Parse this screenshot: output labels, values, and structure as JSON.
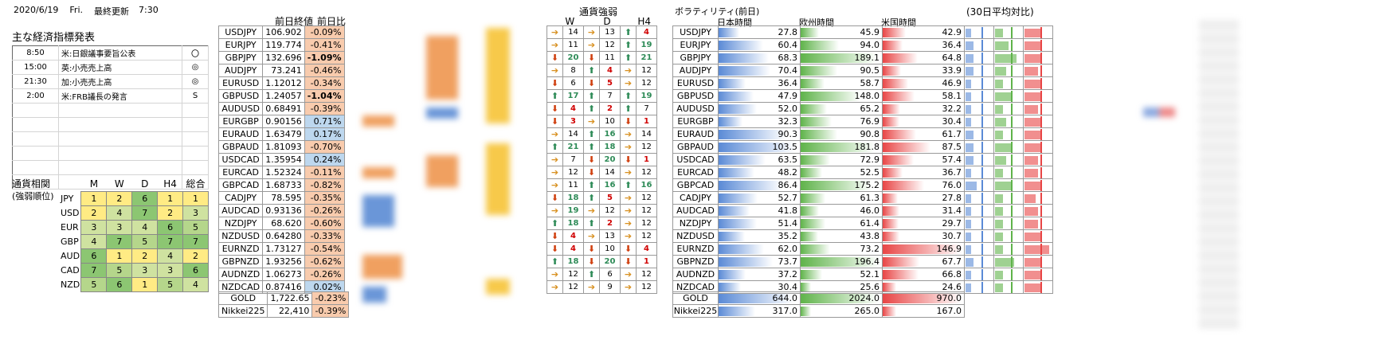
{
  "header": {
    "date": "2020/6/19",
    "day": "Fri.",
    "updated_label": "最終更新",
    "updated_time": "7:30"
  },
  "econ": {
    "title": "主な経済指標発表",
    "rows": [
      {
        "time": "8:50",
        "event": "米:日銀議事要旨公表",
        "mark": "〇"
      },
      {
        "time": "15:00",
        "event": "英:小売売上高",
        "mark": "◎"
      },
      {
        "time": "21:30",
        "event": "加:小売売上高",
        "mark": "◎"
      },
      {
        "time": "2:00",
        "event": "米:FRB議長の発言",
        "mark": "S"
      },
      {
        "time": "",
        "event": "",
        "mark": ""
      },
      {
        "time": "",
        "event": "",
        "mark": ""
      },
      {
        "time": "",
        "event": "",
        "mark": ""
      },
      {
        "time": "",
        "event": "",
        "mark": ""
      },
      {
        "time": "",
        "event": "",
        "mark": ""
      },
      {
        "time": "",
        "event": "",
        "mark": ""
      }
    ]
  },
  "corr": {
    "title": "通貨相関",
    "subtitle": "(強弱順位)",
    "headers": [
      "M",
      "W",
      "D",
      "H4",
      "総合"
    ],
    "rows": [
      {
        "cur": "JPY",
        "vals": [
          "1",
          "2",
          "6",
          "1",
          "1"
        ]
      },
      {
        "cur": "USD",
        "vals": [
          "2",
          "4",
          "7",
          "2",
          "3"
        ]
      },
      {
        "cur": "EUR",
        "vals": [
          "3",
          "3",
          "4",
          "6",
          "5"
        ]
      },
      {
        "cur": "GBP",
        "vals": [
          "4",
          "7",
          "5",
          "7",
          "7"
        ]
      },
      {
        "cur": "AUD",
        "vals": [
          "6",
          "1",
          "2",
          "4",
          "2"
        ]
      },
      {
        "cur": "CAD",
        "vals": [
          "7",
          "5",
          "3",
          "3",
          "6"
        ]
      },
      {
        "cur": "NZD",
        "vals": [
          "5",
          "6",
          "1",
          "5",
          "4"
        ]
      }
    ]
  },
  "prices": {
    "h_close": "前日終値",
    "h_chg": "前日比",
    "rows": [
      {
        "pair": "USDJPY",
        "close": "106.902",
        "chg": "-0.09%",
        "bold": false
      },
      {
        "pair": "EURJPY",
        "close": "119.774",
        "chg": "-0.41%",
        "bold": false
      },
      {
        "pair": "GBPJPY",
        "close": "132.696",
        "chg": "-1.09%",
        "bold": true
      },
      {
        "pair": "AUDJPY",
        "close": "73.241",
        "chg": "-0.46%",
        "bold": false
      },
      {
        "pair": "EURUSD",
        "close": "1.12012",
        "chg": "-0.34%",
        "bold": false
      },
      {
        "pair": "GBPUSD",
        "close": "1.24057",
        "chg": "-1.04%",
        "bold": true
      },
      {
        "pair": "AUDUSD",
        "close": "0.68491",
        "chg": "-0.39%",
        "bold": false
      },
      {
        "pair": "EURGBP",
        "close": "0.90156",
        "chg": "0.71%",
        "bold": false
      },
      {
        "pair": "EURAUD",
        "close": "1.63479",
        "chg": "0.17%",
        "bold": false
      },
      {
        "pair": "GBPAUD",
        "close": "1.81093",
        "chg": "-0.70%",
        "bold": false
      },
      {
        "pair": "USDCAD",
        "close": "1.35954",
        "chg": "0.24%",
        "bold": false
      },
      {
        "pair": "EURCAD",
        "close": "1.52324",
        "chg": "-0.11%",
        "bold": false
      },
      {
        "pair": "GBPCAD",
        "close": "1.68733",
        "chg": "-0.82%",
        "bold": false
      },
      {
        "pair": "CADJPY",
        "close": "78.595",
        "chg": "-0.35%",
        "bold": false
      },
      {
        "pair": "AUDCAD",
        "close": "0.93136",
        "chg": "-0.26%",
        "bold": false
      },
      {
        "pair": "NZDJPY",
        "close": "68.620",
        "chg": "-0.60%",
        "bold": false
      },
      {
        "pair": "NZDUSD",
        "close": "0.64280",
        "chg": "-0.33%",
        "bold": false
      },
      {
        "pair": "EURNZD",
        "close": "1.73127",
        "chg": "-0.54%",
        "bold": false
      },
      {
        "pair": "GBPNZD",
        "close": "1.93256",
        "chg": "-0.62%",
        "bold": false
      },
      {
        "pair": "AUDNZD",
        "close": "1.06273",
        "chg": "-0.26%",
        "bold": false
      },
      {
        "pair": "NZDCAD",
        "close": "0.87416",
        "chg": "0.02%",
        "bold": false
      }
    ],
    "extra": [
      {
        "pair": "GOLD",
        "close": "1,722.65",
        "chg": "-0.23%"
      },
      {
        "pair": "Nikkei225",
        "close": "22,410",
        "chg": "-0.39%"
      }
    ]
  },
  "strength": {
    "title": "通貨強弱",
    "headers": [
      "W",
      "D",
      "H4"
    ],
    "rows": [
      [
        "R",
        "14",
        "R",
        "13",
        "U",
        "4"
      ],
      [
        "R",
        "11",
        "R",
        "12",
        "U",
        "19"
      ],
      [
        "D",
        "20",
        "D",
        "11",
        "U",
        "21"
      ],
      [
        "R",
        "8",
        "U",
        "4",
        "R",
        "12"
      ],
      [
        "D",
        "6",
        "D",
        "5",
        "R",
        "12"
      ],
      [
        "U",
        "17",
        "U",
        "7",
        "U",
        "19"
      ],
      [
        "D",
        "4",
        "U",
        "2",
        "U",
        "7"
      ],
      [
        "D",
        "3",
        "R",
        "10",
        "D",
        "1"
      ],
      [
        "R",
        "14",
        "U",
        "16",
        "R",
        "14"
      ],
      [
        "U",
        "21",
        "U",
        "18",
        "R",
        "12"
      ],
      [
        "R",
        "7",
        "D",
        "20",
        "D",
        "1"
      ],
      [
        "R",
        "12",
        "D",
        "14",
        "R",
        "12"
      ],
      [
        "R",
        "11",
        "U",
        "16",
        "U",
        "16"
      ],
      [
        "D",
        "18",
        "U",
        "5",
        "R",
        "12"
      ],
      [
        "R",
        "19",
        "R",
        "12",
        "R",
        "12"
      ],
      [
        "U",
        "18",
        "U",
        "2",
        "R",
        "12"
      ],
      [
        "D",
        "4",
        "R",
        "13",
        "R",
        "12"
      ],
      [
        "D",
        "4",
        "D",
        "10",
        "D",
        "4"
      ],
      [
        "U",
        "18",
        "D",
        "20",
        "D",
        "1"
      ],
      [
        "R",
        "12",
        "U",
        "6",
        "R",
        "12"
      ],
      [
        "R",
        "12",
        "R",
        "9",
        "R",
        "12"
      ]
    ]
  },
  "vol": {
    "title": "ボラティリティ(前日)",
    "title2": "(30日平均対比)",
    "h_jp": "日本時間",
    "h_eu": "欧州時間",
    "h_us": "米国時間",
    "colors": {
      "jp": "#5a8ad6",
      "eu": "#5fb34a",
      "us": "#e84545"
    },
    "rows": [
      {
        "pair": "USDJPY",
        "jp": "27.8",
        "eu": "45.9",
        "us": "42.9",
        "mini": [
          0.2,
          0.3,
          0.6
        ]
      },
      {
        "pair": "EURJPY",
        "jp": "60.4",
        "eu": "94.0",
        "us": "36.4",
        "mini": [
          0.3,
          0.5,
          0.6
        ]
      },
      {
        "pair": "GBPJPY",
        "jp": "68.3",
        "eu": "189.1",
        "us": "64.8",
        "mini": [
          0.3,
          0.8,
          0.6
        ]
      },
      {
        "pair": "AUDJPY",
        "jp": "70.4",
        "eu": "90.5",
        "us": "33.9",
        "mini": [
          0.3,
          0.4,
          0.5
        ]
      },
      {
        "pair": "EURUSD",
        "jp": "36.4",
        "eu": "58.7",
        "us": "46.9",
        "mini": [
          0.2,
          0.3,
          0.6
        ]
      },
      {
        "pair": "GBPUSD",
        "jp": "47.9",
        "eu": "148.0",
        "us": "58.1",
        "mini": [
          0.2,
          0.6,
          0.6
        ]
      },
      {
        "pair": "AUDUSD",
        "jp": "52.0",
        "eu": "65.2",
        "us": "32.2",
        "mini": [
          0.2,
          0.3,
          0.5
        ]
      },
      {
        "pair": "EURGBP",
        "jp": "32.3",
        "eu": "76.9",
        "us": "30.4",
        "mini": [
          0.2,
          0.4,
          0.6
        ]
      },
      {
        "pair": "EURAUD",
        "jp": "90.3",
        "eu": "90.8",
        "us": "61.7",
        "mini": [
          0.3,
          0.3,
          0.6
        ]
      },
      {
        "pair": "GBPAUD",
        "jp": "103.5",
        "eu": "181.8",
        "us": "87.5",
        "mini": [
          0.3,
          0.6,
          0.6
        ]
      },
      {
        "pair": "USDCAD",
        "jp": "63.5",
        "eu": "72.9",
        "us": "57.4",
        "mini": [
          0.3,
          0.4,
          0.5
        ]
      },
      {
        "pair": "EURCAD",
        "jp": "48.2",
        "eu": "52.5",
        "us": "36.7",
        "mini": [
          0.2,
          0.3,
          0.5
        ]
      },
      {
        "pair": "GBPCAD",
        "jp": "86.4",
        "eu": "175.2",
        "us": "76.0",
        "mini": [
          0.4,
          0.6,
          0.6
        ]
      },
      {
        "pair": "CADJPY",
        "jp": "52.7",
        "eu": "61.3",
        "us": "27.8",
        "mini": [
          0.2,
          0.3,
          0.4
        ]
      },
      {
        "pair": "AUDCAD",
        "jp": "41.8",
        "eu": "46.0",
        "us": "31.4",
        "mini": [
          0.2,
          0.3,
          0.5
        ]
      },
      {
        "pair": "NZDJPY",
        "jp": "51.4",
        "eu": "61.4",
        "us": "29.7",
        "mini": [
          0.2,
          0.3,
          0.5
        ]
      },
      {
        "pair": "NZDUSD",
        "jp": "35.2",
        "eu": "43.8",
        "us": "30.7",
        "mini": [
          0.2,
          0.3,
          0.6
        ]
      },
      {
        "pair": "EURNZD",
        "jp": "62.0",
        "eu": "73.2",
        "us": "146.9",
        "mini": [
          0.2,
          0.3,
          0.9
        ]
      },
      {
        "pair": "GBPNZD",
        "jp": "73.7",
        "eu": "196.4",
        "us": "67.7",
        "mini": [
          0.3,
          0.7,
          0.6
        ]
      },
      {
        "pair": "AUDNZD",
        "jp": "37.2",
        "eu": "52.1",
        "us": "66.8",
        "mini": [
          0.2,
          0.3,
          0.6
        ]
      },
      {
        "pair": "NZDCAD",
        "jp": "30.4",
        "eu": "25.6",
        "us": "24.6",
        "mini": [
          0.2,
          0.3,
          0.6
        ]
      }
    ],
    "extra": [
      {
        "pair": "GOLD",
        "jp": "644.0",
        "eu": "2024.0",
        "us": "970.0"
      },
      {
        "pair": "Nikkei225",
        "jp": "317.0",
        "eu": "265.0",
        "us": "167.0"
      }
    ]
  }
}
